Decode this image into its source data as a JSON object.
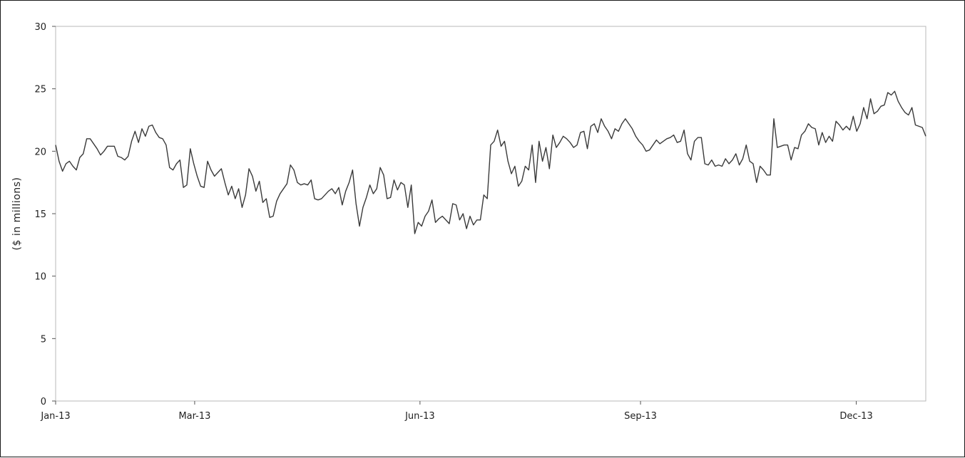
{
  "chart_data": {
    "type": "line",
    "title": "",
    "xlabel": "",
    "ylabel": "($ in millions)",
    "ylim": [
      0,
      30
    ],
    "yticks": [
      0,
      5,
      10,
      15,
      20,
      25,
      30
    ],
    "ytick_labels": [
      "0",
      "5",
      "10",
      "15",
      "20",
      "25",
      "30"
    ],
    "xlim": [
      "2013-01-02",
      "2013-12-31"
    ],
    "xticks": [
      "2013-01-02",
      "2013-03-01",
      "2013-06-03",
      "2013-09-03",
      "2013-12-02"
    ],
    "xtick_labels": [
      "Jan-13",
      "Mar-13",
      "Jun-13",
      "Sep-13",
      "Dec-13"
    ],
    "grid": false,
    "legend": "none",
    "line_color": "#3a3a3a",
    "series": [
      {
        "values": [
          20.5,
          19.2,
          18.4,
          19.0,
          19.2,
          18.8,
          18.5,
          19.5,
          19.8,
          21.0,
          21.0,
          20.6,
          20.2,
          19.7,
          20.0,
          20.4,
          20.4,
          20.4,
          19.6,
          19.5,
          19.3,
          19.6,
          20.8,
          21.6,
          20.7,
          21.8,
          21.2,
          22.0,
          22.1,
          21.5,
          21.1,
          21.0,
          20.5,
          18.7,
          18.5,
          19.0,
          19.3,
          17.1,
          17.3,
          20.2,
          19.0,
          18.0,
          17.2,
          17.1,
          19.2,
          18.5,
          18.0,
          18.3,
          18.6,
          17.5,
          16.5,
          17.2,
          16.2,
          17.0,
          15.5,
          16.5,
          18.6,
          18.0,
          16.8,
          17.6,
          15.9,
          16.2,
          14.7,
          14.8,
          16.0,
          16.6,
          17.0,
          17.4,
          18.9,
          18.5,
          17.5,
          17.3,
          17.4,
          17.3,
          17.7,
          16.2,
          16.1,
          16.2,
          16.5,
          16.8,
          17.0,
          16.6,
          17.1,
          15.7,
          16.8,
          17.5,
          18.5,
          15.8,
          14.0,
          15.5,
          16.3,
          17.3,
          16.6,
          17.0,
          18.7,
          18.1,
          16.2,
          16.3,
          17.7,
          16.9,
          17.5,
          17.3,
          15.5,
          17.3,
          13.4,
          14.3,
          14.0,
          14.8,
          15.2,
          16.1,
          14.3,
          14.6,
          14.8,
          14.5,
          14.2,
          15.8,
          15.7,
          14.5,
          15.0,
          13.8,
          14.8,
          14.1,
          14.5,
          14.5,
          16.5,
          16.2,
          20.5,
          20.8,
          21.7,
          20.4,
          20.8,
          19.2,
          18.2,
          18.8,
          17.2,
          17.6,
          18.8,
          18.5,
          20.5,
          17.5,
          20.8,
          19.2,
          20.3,
          18.6,
          21.3,
          20.3,
          20.7,
          21.2,
          21.0,
          20.7,
          20.3,
          20.5,
          21.5,
          21.6,
          20.2,
          22.0,
          22.2,
          21.5,
          22.6,
          22.0,
          21.6,
          21.0,
          21.8,
          21.6,
          22.2,
          22.6,
          22.2,
          21.8,
          21.2,
          20.8,
          20.5,
          20.0,
          20.1,
          20.5,
          20.9,
          20.6,
          20.8,
          21.0,
          21.1,
          21.3,
          20.7,
          20.8,
          21.7,
          19.8,
          19.3,
          20.8,
          21.1,
          21.1,
          19.0,
          18.9,
          19.3,
          18.8,
          18.9,
          18.8,
          19.4,
          19.0,
          19.3,
          19.8,
          18.9,
          19.4,
          20.5,
          19.2,
          19.0,
          17.5,
          18.8,
          18.5,
          18.1,
          18.1,
          22.6,
          20.3,
          20.4,
          20.5,
          20.5,
          19.3,
          20.3,
          20.2,
          21.3,
          21.6,
          22.2,
          21.9,
          21.8,
          20.5,
          21.5,
          20.7,
          21.2,
          20.8,
          22.4,
          22.1,
          21.7,
          22.0,
          21.7,
          22.8,
          21.6,
          22.2,
          23.5,
          22.6,
          24.2,
          23.0,
          23.2,
          23.6,
          23.7,
          24.7,
          24.5,
          24.8,
          24.0,
          23.5,
          23.1,
          22.9,
          23.5,
          22.1,
          22.0,
          21.9,
          21.2
        ]
      }
    ]
  }
}
